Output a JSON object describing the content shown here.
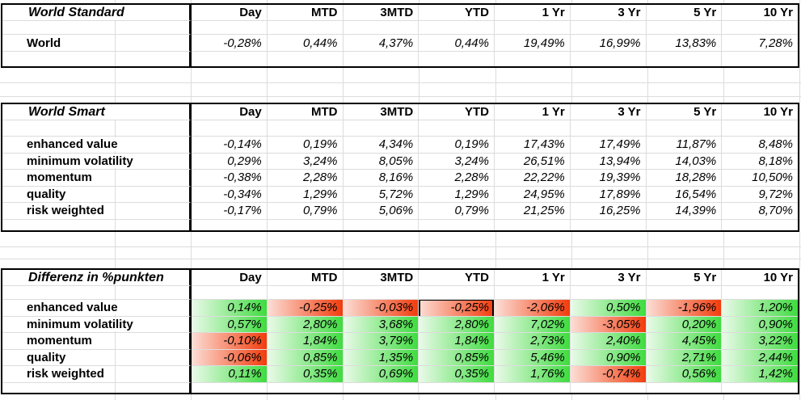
{
  "sheet": {
    "columns": [
      "Day",
      "MTD",
      "3MTD",
      "YTD",
      "1 Yr",
      "3 Yr",
      "5 Yr",
      "10 Yr"
    ],
    "tables": [
      {
        "title": "World Standard",
        "conditional_formatting": false,
        "rows": [
          {
            "label": "World",
            "values": [
              "-0,28%",
              "0,44%",
              "4,37%",
              "0,44%",
              "19,49%",
              "16,99%",
              "13,83%",
              "7,28%"
            ]
          }
        ]
      },
      {
        "title": "World Smart",
        "conditional_formatting": false,
        "rows": [
          {
            "label": "enhanced value",
            "values": [
              "-0,14%",
              "0,19%",
              "4,34%",
              "0,19%",
              "17,43%",
              "17,49%",
              "11,87%",
              "8,48%"
            ]
          },
          {
            "label": "minimum volatility",
            "values": [
              "0,29%",
              "3,24%",
              "8,05%",
              "3,24%",
              "26,51%",
              "13,94%",
              "14,03%",
              "8,18%"
            ]
          },
          {
            "label": "momentum",
            "values": [
              "-0,38%",
              "2,28%",
              "8,16%",
              "2,28%",
              "22,22%",
              "19,39%",
              "18,28%",
              "10,50%"
            ]
          },
          {
            "label": "quality",
            "values": [
              "-0,34%",
              "1,29%",
              "5,72%",
              "1,29%",
              "24,95%",
              "17,89%",
              "16,54%",
              "9,72%"
            ]
          },
          {
            "label": "risk weighted",
            "values": [
              "-0,17%",
              "0,79%",
              "5,06%",
              "0,79%",
              "21,25%",
              "16,25%",
              "14,39%",
              "8,70%"
            ]
          }
        ]
      },
      {
        "title": "Differenz in %punkten",
        "conditional_formatting": true,
        "rows": [
          {
            "label": "enhanced value",
            "values": [
              "0,14%",
              "-0,25%",
              "-0,03%",
              "-0,25%",
              "-2,06%",
              "0,50%",
              "-1,96%",
              "1,20%"
            ]
          },
          {
            "label": "minimum volatility",
            "values": [
              "0,57%",
              "2,80%",
              "3,68%",
              "2,80%",
              "7,02%",
              "-3,05%",
              "0,20%",
              "0,90%"
            ]
          },
          {
            "label": "momentum",
            "values": [
              "-0,10%",
              "1,84%",
              "3,79%",
              "1,84%",
              "2,73%",
              "2,40%",
              "4,45%",
              "3,22%"
            ]
          },
          {
            "label": "quality",
            "values": [
              "-0,06%",
              "0,85%",
              "1,35%",
              "0,85%",
              "5,46%",
              "0,90%",
              "2,71%",
              "2,44%"
            ]
          },
          {
            "label": "risk weighted",
            "values": [
              "0,11%",
              "0,35%",
              "0,69%",
              "0,35%",
              "1,76%",
              "-0,74%",
              "0,56%",
              "1,42%"
            ]
          }
        ]
      }
    ],
    "selected_cell": {
      "table_index": 2,
      "row_index": 0,
      "column_index": 3,
      "value": "-0,25%"
    },
    "colors": {
      "positive_fill_start": "#eafae9",
      "positive_fill_end": "#3fdc3f",
      "negative_fill_start": "#fcded6",
      "negative_fill_end": "#f23c0c",
      "gridline": "#dcdcdc",
      "table_border": "#000000",
      "cell_background": "#ffffff"
    }
  }
}
